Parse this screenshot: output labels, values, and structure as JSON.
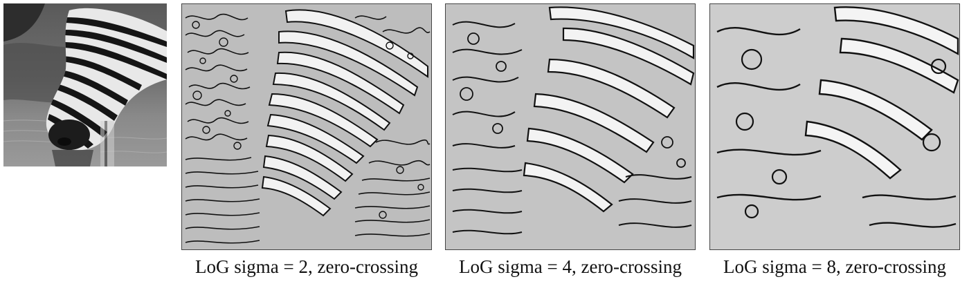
{
  "panels": [
    {
      "id": "original",
      "kind": "photo",
      "caption": ""
    },
    {
      "id": "sigma2",
      "kind": "zero-crossing",
      "sigma": 2,
      "caption": "LoG sigma = 2, zero-crossing"
    },
    {
      "id": "sigma4",
      "kind": "zero-crossing",
      "sigma": 4,
      "caption": "LoG sigma = 4, zero-crossing"
    },
    {
      "id": "sigma8",
      "kind": "zero-crossing",
      "sigma": 8,
      "caption": "LoG sigma = 8, zero-crossing"
    }
  ],
  "colors": {
    "edge": "#111111",
    "light": "#f4f4f4",
    "mid": "#b9b9b9",
    "dark": "#3a3a3a"
  }
}
